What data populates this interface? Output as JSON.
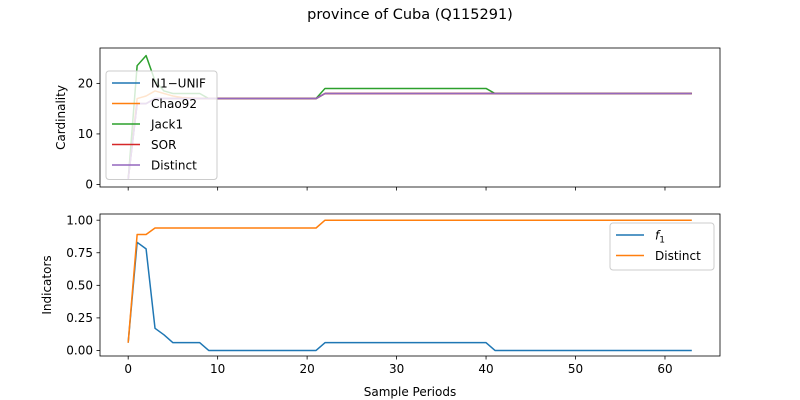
{
  "chart_data": {
    "title": "province of Cuba (Q115291)",
    "xlabel": "Sample Periods",
    "panels": [
      {
        "type": "line",
        "ylabel": "Cardinality",
        "xlim": [
          -3.15,
          66.15
        ],
        "ylim": [
          -0.5,
          27
        ],
        "xticks": [
          0,
          10,
          20,
          30,
          40,
          50,
          60
        ],
        "yticks": [
          0,
          10,
          20
        ],
        "legend": "upper-left",
        "series": [
          {
            "name": "N1−UNIF",
            "color": "#1f77b4",
            "x": [
              0,
              1,
              2,
              3,
              4,
              5,
              6,
              7,
              8,
              9,
              10,
              11,
              12,
              13,
              14,
              15,
              16,
              17,
              18,
              19,
              20,
              21,
              22,
              23,
              24,
              25,
              26,
              27,
              28,
              29,
              30,
              31,
              32,
              33,
              34,
              35,
              36,
              37,
              38,
              39,
              40,
              41,
              42,
              43,
              44,
              45,
              46,
              47,
              48,
              49,
              50,
              51,
              52,
              53,
              54,
              55,
              56,
              57,
              58,
              59,
              60,
              61,
              62,
              63
            ],
            "values": [
              1,
              16,
              16,
              17,
              17,
              17,
              17,
              17,
              17,
              17,
              17,
              17,
              17,
              17,
              17,
              17,
              17,
              17,
              17,
              17,
              17,
              17,
              18,
              18,
              18,
              18,
              18,
              18,
              18,
              18,
              18,
              18,
              18,
              18,
              18,
              18,
              18,
              18,
              18,
              18,
              18,
              18,
              18,
              18,
              18,
              18,
              18,
              18,
              18,
              18,
              18,
              18,
              18,
              18,
              18,
              18,
              18,
              18,
              18,
              18,
              18,
              18,
              18,
              18
            ]
          },
          {
            "name": "Chao92",
            "color": "#ff7f0e",
            "x": [
              0,
              1,
              2,
              3,
              4,
              5,
              6,
              7,
              8,
              9,
              10,
              11,
              12,
              13,
              14,
              15,
              16,
              17,
              18,
              19,
              20,
              21,
              22,
              23,
              24,
              25,
              26,
              27,
              28,
              29,
              30,
              31,
              32,
              33,
              34,
              35,
              36,
              37,
              38,
              39,
              40,
              41,
              42,
              43,
              44,
              45,
              46,
              47,
              48,
              49,
              50,
              51,
              52,
              53,
              54,
              55,
              56,
              57,
              58,
              59,
              60,
              61,
              62,
              63
            ],
            "values": [
              1,
              17,
              17.5,
              18.5,
              18,
              17.5,
              17.2,
              17.1,
              17,
              17,
              17,
              17,
              17,
              17,
              17,
              17,
              17,
              17,
              17,
              17,
              17,
              17,
              18,
              18,
              18,
              18,
              18,
              18,
              18,
              18,
              18,
              18,
              18,
              18,
              18,
              18,
              18,
              18,
              18,
              18,
              18,
              18,
              18,
              18,
              18,
              18,
              18,
              18,
              18,
              18,
              18,
              18,
              18,
              18,
              18,
              18,
              18,
              18,
              18,
              18,
              18,
              18,
              18,
              18
            ]
          },
          {
            "name": "Jack1",
            "color": "#2ca02c",
            "x": [
              0,
              1,
              2,
              3,
              4,
              5,
              6,
              7,
              8,
              9,
              10,
              11,
              12,
              13,
              14,
              15,
              16,
              17,
              18,
              19,
              20,
              21,
              22,
              23,
              24,
              25,
              26,
              27,
              28,
              29,
              30,
              31,
              32,
              33,
              34,
              35,
              36,
              37,
              38,
              39,
              40,
              41,
              42,
              43,
              44,
              45,
              46,
              47,
              48,
              49,
              50,
              51,
              52,
              53,
              54,
              55,
              56,
              57,
              58,
              59,
              60,
              61,
              62,
              63
            ],
            "values": [
              1,
              23.5,
              25.5,
              20.5,
              18.5,
              18,
              18,
              18,
              18,
              17,
              17,
              17,
              17,
              17,
              17,
              17,
              17,
              17,
              17,
              17,
              17,
              17,
              19,
              19,
              19,
              19,
              19,
              19,
              19,
              19,
              19,
              19,
              19,
              19,
              19,
              19,
              19,
              19,
              19,
              19,
              19,
              18,
              18,
              18,
              18,
              18,
              18,
              18,
              18,
              18,
              18,
              18,
              18,
              18,
              18,
              18,
              18,
              18,
              18,
              18,
              18,
              18,
              18,
              18
            ]
          },
          {
            "name": "SOR",
            "color": "#d62728",
            "x": [
              0,
              1,
              2,
              3,
              4,
              5,
              6,
              7,
              8,
              9,
              10,
              11,
              12,
              13,
              14,
              15,
              16,
              17,
              18,
              19,
              20,
              21,
              22,
              23,
              24,
              25,
              26,
              27,
              28,
              29,
              30,
              31,
              32,
              33,
              34,
              35,
              36,
              37,
              38,
              39,
              40,
              41,
              42,
              43,
              44,
              45,
              46,
              47,
              48,
              49,
              50,
              51,
              52,
              53,
              54,
              55,
              56,
              57,
              58,
              59,
              60,
              61,
              62,
              63
            ],
            "values": [
              1,
              16,
              16,
              17,
              17,
              17,
              17,
              17,
              17,
              17,
              17,
              17,
              17,
              17,
              17,
              17,
              17,
              17,
              17,
              17,
              17,
              17,
              18,
              18,
              18,
              18,
              18,
              18,
              18,
              18,
              18,
              18,
              18,
              18,
              18,
              18,
              18,
              18,
              18,
              18,
              18,
              18,
              18,
              18,
              18,
              18,
              18,
              18,
              18,
              18,
              18,
              18,
              18,
              18,
              18,
              18,
              18,
              18,
              18,
              18,
              18,
              18,
              18,
              18
            ]
          },
          {
            "name": "Distinct",
            "color": "#9467bd",
            "x": [
              0,
              1,
              2,
              3,
              4,
              5,
              6,
              7,
              8,
              9,
              10,
              11,
              12,
              13,
              14,
              15,
              16,
              17,
              18,
              19,
              20,
              21,
              22,
              23,
              24,
              25,
              26,
              27,
              28,
              29,
              30,
              31,
              32,
              33,
              34,
              35,
              36,
              37,
              38,
              39,
              40,
              41,
              42,
              43,
              44,
              45,
              46,
              47,
              48,
              49,
              50,
              51,
              52,
              53,
              54,
              55,
              56,
              57,
              58,
              59,
              60,
              61,
              62,
              63
            ],
            "values": [
              1,
              16,
              16,
              17,
              17,
              17,
              17,
              17,
              17,
              17,
              17,
              17,
              17,
              17,
              17,
              17,
              17,
              17,
              17,
              17,
              17,
              17,
              18,
              18,
              18,
              18,
              18,
              18,
              18,
              18,
              18,
              18,
              18,
              18,
              18,
              18,
              18,
              18,
              18,
              18,
              18,
              18,
              18,
              18,
              18,
              18,
              18,
              18,
              18,
              18,
              18,
              18,
              18,
              18,
              18,
              18,
              18,
              18,
              18,
              18,
              18,
              18,
              18,
              18
            ]
          }
        ]
      },
      {
        "type": "line",
        "ylabel": "Indicators",
        "xlim": [
          -3.15,
          66.15
        ],
        "ylim": [
          -0.0425,
          1.0475
        ],
        "xticks": [
          0,
          10,
          20,
          30,
          40,
          50,
          60
        ],
        "yticks": [
          0.0,
          0.25,
          0.5,
          0.75,
          1.0
        ],
        "ytick_labels": [
          "0.00",
          "0.25",
          "0.50",
          "0.75",
          "1.00"
        ],
        "legend": "upper-right",
        "series": [
          {
            "name": "f",
            "name_sub": "1",
            "color": "#1f77b4",
            "x": [
              0,
              1,
              2,
              3,
              4,
              5,
              6,
              7,
              8,
              9,
              10,
              11,
              12,
              13,
              14,
              15,
              16,
              17,
              18,
              19,
              20,
              21,
              22,
              23,
              24,
              25,
              26,
              27,
              28,
              29,
              30,
              31,
              32,
              33,
              34,
              35,
              36,
              37,
              38,
              39,
              40,
              41,
              42,
              43,
              44,
              45,
              46,
              47,
              48,
              49,
              50,
              51,
              52,
              53,
              54,
              55,
              56,
              57,
              58,
              59,
              60,
              61,
              62,
              63
            ],
            "values": [
              0.06,
              0.83,
              0.78,
              0.17,
              0.12,
              0.06,
              0.06,
              0.06,
              0.06,
              0.0,
              0.0,
              0.0,
              0.0,
              0.0,
              0.0,
              0.0,
              0.0,
              0.0,
              0.0,
              0.0,
              0.0,
              0.0,
              0.06,
              0.06,
              0.06,
              0.06,
              0.06,
              0.06,
              0.06,
              0.06,
              0.06,
              0.06,
              0.06,
              0.06,
              0.06,
              0.06,
              0.06,
              0.06,
              0.06,
              0.06,
              0.06,
              0.0,
              0.0,
              0.0,
              0.0,
              0.0,
              0.0,
              0.0,
              0.0,
              0.0,
              0.0,
              0.0,
              0.0,
              0.0,
              0.0,
              0.0,
              0.0,
              0.0,
              0.0,
              0.0,
              0.0,
              0.0,
              0.0,
              0.0
            ]
          },
          {
            "name": "Distinct",
            "color": "#ff7f0e",
            "x": [
              0,
              1,
              2,
              3,
              4,
              5,
              6,
              7,
              8,
              9,
              10,
              11,
              12,
              13,
              14,
              15,
              16,
              17,
              18,
              19,
              20,
              21,
              22,
              23,
              24,
              25,
              26,
              27,
              28,
              29,
              30,
              31,
              32,
              33,
              34,
              35,
              36,
              37,
              38,
              39,
              40,
              41,
              42,
              43,
              44,
              45,
              46,
              47,
              48,
              49,
              50,
              51,
              52,
              53,
              54,
              55,
              56,
              57,
              58,
              59,
              60,
              61,
              62,
              63
            ],
            "values": [
              0.06,
              0.89,
              0.89,
              0.94,
              0.94,
              0.94,
              0.94,
              0.94,
              0.94,
              0.94,
              0.94,
              0.94,
              0.94,
              0.94,
              0.94,
              0.94,
              0.94,
              0.94,
              0.94,
              0.94,
              0.94,
              0.94,
              1.0,
              1.0,
              1.0,
              1.0,
              1.0,
              1.0,
              1.0,
              1.0,
              1.0,
              1.0,
              1.0,
              1.0,
              1.0,
              1.0,
              1.0,
              1.0,
              1.0,
              1.0,
              1.0,
              1.0,
              1.0,
              1.0,
              1.0,
              1.0,
              1.0,
              1.0,
              1.0,
              1.0,
              1.0,
              1.0,
              1.0,
              1.0,
              1.0,
              1.0,
              1.0,
              1.0,
              1.0,
              1.0,
              1.0,
              1.0,
              1.0,
              1.0
            ]
          }
        ]
      }
    ]
  }
}
